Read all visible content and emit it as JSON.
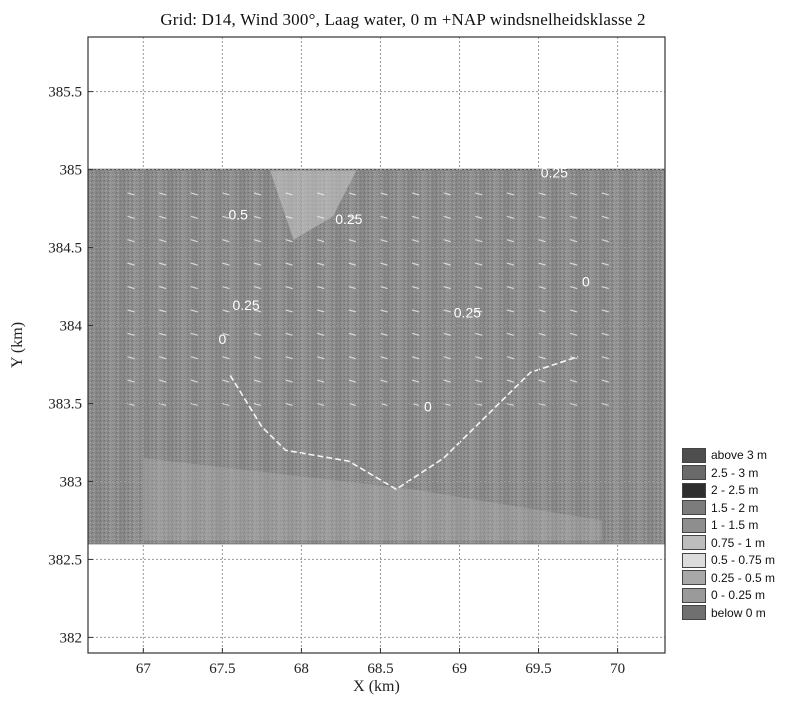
{
  "title": "Grid: D14, Wind 300°, Laag water, 0 m +NAP windsnelheidsklasse 2",
  "chart_data": {
    "type": "heatmap",
    "xlabel": "X (km)",
    "ylabel": "Y (km)",
    "xlim": [
      66.65,
      70.3
    ],
    "ylim": [
      381.9,
      385.85
    ],
    "xticks": [
      67,
      67.5,
      68,
      68.5,
      69,
      69.5,
      70
    ],
    "xtick_labels": [
      "67",
      "67.5",
      "68",
      "68.5",
      "69",
      "69.5",
      "70"
    ],
    "yticks": [
      382,
      382.5,
      383,
      383.5,
      384,
      384.5,
      385,
      385.5
    ],
    "ytick_labels": [
      "382",
      "382.5",
      "383",
      "383.5",
      "384",
      "384.5",
      "385",
      "385.5"
    ],
    "grid": true,
    "field_extent": {
      "x": [
        66.65,
        70.3
      ],
      "y": [
        382.6,
        385.0
      ]
    },
    "contour_labels": [
      {
        "text": "0.5",
        "x": 67.6,
        "y": 384.68
      },
      {
        "text": "0.25",
        "x": 68.3,
        "y": 384.65
      },
      {
        "text": "0.25",
        "x": 69.6,
        "y": 384.95
      },
      {
        "text": "0",
        "x": 69.8,
        "y": 384.25
      },
      {
        "text": "0.25",
        "x": 67.65,
        "y": 384.1
      },
      {
        "text": "0.25",
        "x": 69.05,
        "y": 384.05
      },
      {
        "text": "0",
        "x": 67.5,
        "y": 383.88
      },
      {
        "text": "0",
        "x": 68.8,
        "y": 383.45
      }
    ],
    "legend_position": "right",
    "legend": [
      {
        "label": "above 3 m",
        "color": "#4e4e4e"
      },
      {
        "label": "2.5 - 3 m",
        "color": "#6a6a6a"
      },
      {
        "label": "2 - 2.5 m",
        "color": "#2e2e2e"
      },
      {
        "label": "1.5 - 2 m",
        "color": "#7c7c7c"
      },
      {
        "label": "1 - 1.5 m",
        "color": "#8e8e8e"
      },
      {
        "label": "0.75 - 1 m",
        "color": "#bdbdbd"
      },
      {
        "label": "0.5 - 0.75 m",
        "color": "#dcdcdc"
      },
      {
        "label": "0.25 - 0.5 m",
        "color": "#a8a8a8"
      },
      {
        "label": "0 - 0.25 m",
        "color": "#9a9a9a"
      },
      {
        "label": "below 0 m",
        "color": "#707070"
      }
    ]
  }
}
